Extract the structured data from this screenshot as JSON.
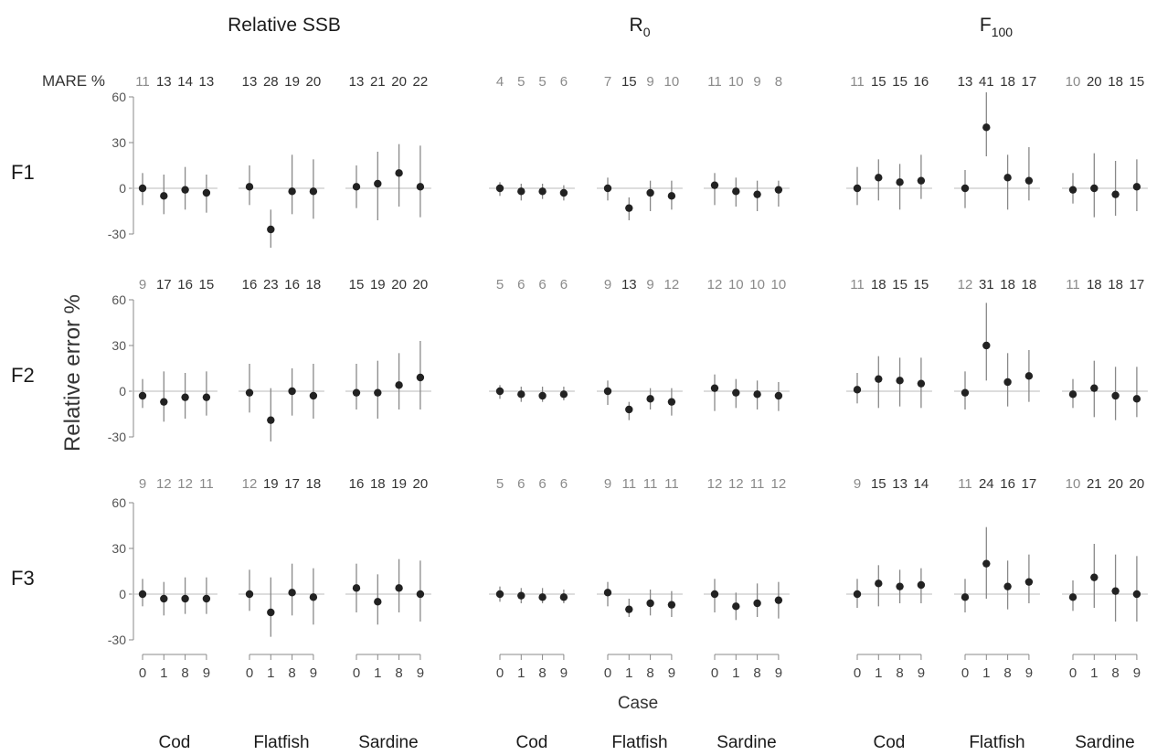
{
  "chart_data": {
    "type": "scatter",
    "panel_titles": [
      {
        "main": "Relative SSB",
        "sub": ""
      },
      {
        "main": "R",
        "sub": "0"
      },
      {
        "main": "F",
        "sub": "100"
      }
    ],
    "rows": [
      "F1",
      "F2",
      "F3"
    ],
    "species": [
      "Cod",
      "Flatfish",
      "Sardine"
    ],
    "cases": [
      "0",
      "1",
      "8",
      "9"
    ],
    "ylabel": "Relative error %",
    "xlabel": "Case",
    "mare_label": "MARE %",
    "yticks": [
      "60",
      "30",
      "0",
      "-30"
    ],
    "ylim": [
      -30,
      60
    ],
    "colors": {
      "point": "#222222",
      "line": "#888888",
      "zero": "#bbbbbb",
      "axis": "#888888"
    },
    "groups": {
      "F1": {
        "Relative SSB": {
          "Cod": {
            "mare": [
              11,
              13,
              14,
              13
            ],
            "mid": [
              0,
              -5,
              -1,
              -3
            ],
            "lo": [
              -11,
              -17,
              -14,
              -16
            ],
            "hi": [
              10,
              9,
              14,
              9
            ]
          },
          "Flatfish": {
            "mare": [
              13,
              28,
              19,
              20
            ],
            "mid": [
              1,
              -27,
              -2,
              -2
            ],
            "lo": [
              -11,
              -39,
              -17,
              -20
            ],
            "hi": [
              15,
              -14,
              22,
              19
            ]
          },
          "Sardine": {
            "mare": [
              13,
              21,
              20,
              22
            ],
            "mid": [
              1,
              3,
              10,
              1
            ],
            "lo": [
              -13,
              -21,
              -12,
              -19
            ],
            "hi": [
              15,
              24,
              29,
              28
            ]
          }
        },
        "R0": {
          "Cod": {
            "mare": [
              4,
              5,
              5,
              6
            ],
            "mid": [
              0,
              -2,
              -2,
              -3
            ],
            "lo": [
              -5,
              -8,
              -7,
              -8
            ],
            "hi": [
              4,
              3,
              3,
              2
            ]
          },
          "Flatfish": {
            "mare": [
              7,
              15,
              9,
              10
            ],
            "mid": [
              0,
              -13,
              -3,
              -5
            ],
            "lo": [
              -8,
              -21,
              -15,
              -14
            ],
            "hi": [
              7,
              -6,
              5,
              5
            ]
          },
          "Sardine": {
            "mare": [
              11,
              10,
              9,
              8
            ],
            "mid": [
              2,
              -2,
              -4,
              -1
            ],
            "lo": [
              -11,
              -12,
              -15,
              -12
            ],
            "hi": [
              10,
              7,
              5,
              5
            ]
          }
        },
        "F100": {
          "Cod": {
            "mare": [
              11,
              15,
              15,
              16
            ],
            "mid": [
              0,
              7,
              4,
              5
            ],
            "lo": [
              -11,
              -8,
              -14,
              -7
            ],
            "hi": [
              14,
              19,
              16,
              22
            ]
          },
          "Flatfish": {
            "mare": [
              13,
              41,
              18,
              17
            ],
            "mid": [
              0,
              40,
              7,
              5
            ],
            "lo": [
              -13,
              21,
              -14,
              -8
            ],
            "hi": [
              12,
              63,
              22,
              27
            ]
          },
          "Sardine": {
            "mare": [
              10,
              20,
              18,
              15
            ],
            "mid": [
              -1,
              0,
              -4,
              1
            ],
            "lo": [
              -10,
              -19,
              -18,
              -15
            ],
            "hi": [
              10,
              23,
              18,
              19
            ]
          }
        }
      },
      "F2": {
        "Relative SSB": {
          "Cod": {
            "mare": [
              9,
              17,
              16,
              15
            ],
            "mid": [
              -3,
              -7,
              -4,
              -4
            ],
            "lo": [
              -11,
              -20,
              -18,
              -16
            ],
            "hi": [
              8,
              13,
              12,
              13
            ]
          },
          "Flatfish": {
            "mare": [
              16,
              23,
              16,
              18
            ],
            "mid": [
              -1,
              -19,
              0,
              -3
            ],
            "lo": [
              -14,
              -33,
              -16,
              -18
            ],
            "hi": [
              18,
              2,
              15,
              18
            ]
          },
          "Sardine": {
            "mare": [
              15,
              19,
              20,
              20
            ],
            "mid": [
              -1,
              -1,
              4,
              9
            ],
            "lo": [
              -12,
              -18,
              -12,
              -12
            ],
            "hi": [
              18,
              20,
              25,
              33
            ]
          }
        },
        "R0": {
          "Cod": {
            "mare": [
              5,
              6,
              6,
              6
            ],
            "mid": [
              0,
              -2,
              -3,
              -2
            ],
            "lo": [
              -5,
              -7,
              -7,
              -6
            ],
            "hi": [
              4,
              3,
              3,
              3
            ]
          },
          "Flatfish": {
            "mare": [
              9,
              13,
              9,
              12
            ],
            "mid": [
              0,
              -12,
              -5,
              -7
            ],
            "lo": [
              -9,
              -19,
              -12,
              -16
            ],
            "hi": [
              7,
              -7,
              2,
              2
            ]
          },
          "Sardine": {
            "mare": [
              12,
              10,
              10,
              10
            ],
            "mid": [
              2,
              -1,
              -2,
              -3
            ],
            "lo": [
              -13,
              -11,
              -12,
              -13
            ],
            "hi": [
              11,
              8,
              7,
              6
            ]
          }
        },
        "F100": {
          "Cod": {
            "mare": [
              11,
              18,
              15,
              15
            ],
            "mid": [
              1,
              8,
              7,
              5
            ],
            "lo": [
              -8,
              -11,
              -10,
              -11
            ],
            "hi": [
              12,
              23,
              22,
              22
            ]
          },
          "Flatfish": {
            "mare": [
              12,
              31,
              18,
              18
            ],
            "mid": [
              -1,
              30,
              6,
              10
            ],
            "lo": [
              -12,
              7,
              -10,
              -7
            ],
            "hi": [
              13,
              58,
              25,
              27
            ]
          },
          "Sardine": {
            "mare": [
              11,
              18,
              18,
              17
            ],
            "mid": [
              -2,
              2,
              -3,
              -5
            ],
            "lo": [
              -11,
              -17,
              -19,
              -17
            ],
            "hi": [
              8,
              20,
              16,
              16
            ]
          }
        }
      },
      "F3": {
        "Relative SSB": {
          "Cod": {
            "mare": [
              9,
              12,
              12,
              11
            ],
            "mid": [
              0,
              -3,
              -3,
              -3
            ],
            "lo": [
              -8,
              -14,
              -13,
              -13
            ],
            "hi": [
              10,
              8,
              11,
              11
            ]
          },
          "Flatfish": {
            "mare": [
              12,
              19,
              17,
              18
            ],
            "mid": [
              0,
              -12,
              1,
              -2
            ],
            "lo": [
              -11,
              -28,
              -14,
              -20
            ],
            "hi": [
              16,
              11,
              20,
              17
            ]
          },
          "Sardine": {
            "mare": [
              16,
              18,
              19,
              20
            ],
            "mid": [
              4,
              -5,
              4,
              0
            ],
            "lo": [
              -12,
              -20,
              -12,
              -18
            ],
            "hi": [
              20,
              13,
              23,
              22
            ]
          }
        },
        "R0": {
          "Cod": {
            "mare": [
              5,
              6,
              6,
              6
            ],
            "mid": [
              0,
              -1,
              -2,
              -2
            ],
            "lo": [
              -5,
              -6,
              -6,
              -6
            ],
            "hi": [
              5,
              4,
              4,
              3
            ]
          },
          "Flatfish": {
            "mare": [
              9,
              11,
              11,
              11
            ],
            "mid": [
              1,
              -10,
              -6,
              -7
            ],
            "lo": [
              -8,
              -15,
              -14,
              -15
            ],
            "hi": [
              8,
              -3,
              3,
              2
            ]
          },
          "Sardine": {
            "mare": [
              12,
              12,
              11,
              12
            ],
            "mid": [
              0,
              -8,
              -6,
              -4
            ],
            "lo": [
              -12,
              -17,
              -15,
              -16
            ],
            "hi": [
              10,
              1,
              7,
              8
            ]
          }
        },
        "F100": {
          "Cod": {
            "mare": [
              9,
              15,
              13,
              14
            ],
            "mid": [
              0,
              7,
              5,
              6
            ],
            "lo": [
              -9,
              -8,
              -6,
              -6
            ],
            "hi": [
              10,
              19,
              16,
              17
            ]
          },
          "Flatfish": {
            "mare": [
              11,
              24,
              16,
              17
            ],
            "mid": [
              -2,
              20,
              5,
              8
            ],
            "lo": [
              -12,
              -3,
              -10,
              -6
            ],
            "hi": [
              10,
              44,
              22,
              26
            ]
          },
          "Sardine": {
            "mare": [
              10,
              21,
              20,
              20
            ],
            "mid": [
              -2,
              11,
              2,
              0
            ],
            "lo": [
              -11,
              -9,
              -18,
              -18
            ],
            "hi": [
              9,
              33,
              26,
              25
            ]
          }
        }
      }
    }
  }
}
